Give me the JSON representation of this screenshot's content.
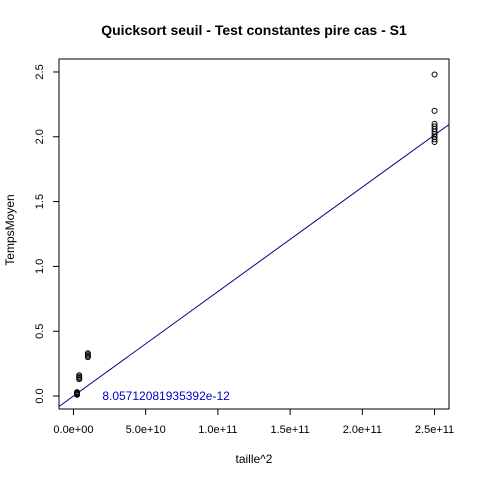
{
  "chart_data": {
    "type": "scatter",
    "title": "Quicksort seuil - Test constantes pire cas - S1",
    "xlabel": "taille^2",
    "ylabel": "TempsMoyen",
    "xlim": [
      -10000000000.0,
      260000000000.0
    ],
    "ylim": [
      -0.1,
      2.6
    ],
    "x_ticks": [
      0,
      50000000000.0,
      100000000000.0,
      150000000000.0,
      200000000000.0,
      250000000000.0
    ],
    "x_tick_labels": [
      "0.0e+00",
      "5.0e+10",
      "1.0e+11",
      "1.5e+11",
      "2.0e+11",
      "2.5e+11"
    ],
    "y_ticks": [
      0.0,
      0.5,
      1.0,
      1.5,
      2.0,
      2.5
    ],
    "y_tick_labels": [
      "0.0",
      "0.5",
      "1.0",
      "1.5",
      "2.0",
      "2.5"
    ],
    "series": [
      {
        "points": [
          {
            "x": 2500000000.0,
            "y": 0.01
          },
          {
            "x": 2500000000.0,
            "y": 0.015
          },
          {
            "x": 2500000000.0,
            "y": 0.02
          },
          {
            "x": 2500000000.0,
            "y": 0.025
          },
          {
            "x": 2500000000.0,
            "y": 0.03
          },
          {
            "x": 4000000000.0,
            "y": 0.13
          },
          {
            "x": 4000000000.0,
            "y": 0.14
          },
          {
            "x": 4000000000.0,
            "y": 0.15
          },
          {
            "x": 4000000000.0,
            "y": 0.16
          },
          {
            "x": 10000000000.0,
            "y": 0.3
          },
          {
            "x": 10000000000.0,
            "y": 0.31
          },
          {
            "x": 10000000000.0,
            "y": 0.32
          },
          {
            "x": 10000000000.0,
            "y": 0.33
          },
          {
            "x": 250000000000.0,
            "y": 2.48
          },
          {
            "x": 250000000000.0,
            "y": 2.2
          },
          {
            "x": 250000000000.0,
            "y": 2.1
          },
          {
            "x": 250000000000.0,
            "y": 2.08
          },
          {
            "x": 250000000000.0,
            "y": 2.06
          },
          {
            "x": 250000000000.0,
            "y": 2.04
          },
          {
            "x": 250000000000.0,
            "y": 2.02
          },
          {
            "x": 250000000000.0,
            "y": 2.0
          },
          {
            "x": 250000000000.0,
            "y": 1.98
          },
          {
            "x": 250000000000.0,
            "y": 1.96
          }
        ]
      }
    ],
    "fit_line": {
      "slope": 8.05712081935392e-12,
      "intercept": 0,
      "color": "#00008b"
    },
    "annotation": {
      "text": "8.05712081935392e-12",
      "x": 20000000000.0,
      "y": 0,
      "color": "#0000cd"
    },
    "grid": false,
    "colors": {
      "points": "#000000",
      "axis": "#000000"
    }
  }
}
